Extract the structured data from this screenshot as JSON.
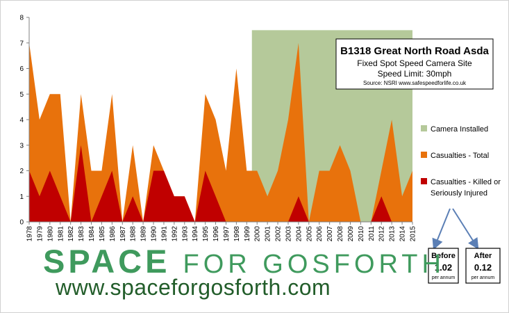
{
  "chart_data": {
    "type": "area",
    "title": "B1318 Great North Road Asda",
    "subtitle_lines": [
      "Fixed Spot Speed Camera Site",
      "Speed Limit: 30mph"
    ],
    "source": "Source: NSRI   www.safespeedforlife.co.uk",
    "x": [
      "1978",
      "1979",
      "1980",
      "1981",
      "1982",
      "1983",
      "1984",
      "1985",
      "1986",
      "1987",
      "1988",
      "1989",
      "1990",
      "1991",
      "1992",
      "1993",
      "1994",
      "1995",
      "1996",
      "1997",
      "1998",
      "1999",
      "2000",
      "2001",
      "2002",
      "2003",
      "2004",
      "2005",
      "2006",
      "2007",
      "2008",
      "2009",
      "2010",
      "2011",
      "2012",
      "2013",
      "2014",
      "2015"
    ],
    "ylim": [
      0,
      8
    ],
    "yticks": [
      0,
      1,
      2,
      3,
      4,
      5,
      6,
      7,
      8
    ],
    "grid": false,
    "legend_position": "right",
    "series": [
      {
        "name": "Camera Installed",
        "color": "#b5c99a",
        "start": "1999.5",
        "level": 7.5
      },
      {
        "name": "Casualties - Total",
        "color": "#e8720c",
        "values": [
          7,
          4,
          5,
          5,
          0,
          5,
          2,
          2,
          5,
          0,
          3,
          0,
          3,
          2,
          1,
          1,
          0,
          5,
          4,
          2,
          6,
          2,
          2,
          1,
          2,
          4,
          7,
          0,
          2,
          2,
          3,
          2,
          0,
          0,
          2,
          4,
          1,
          2
        ]
      },
      {
        "name": "Casualties - Killed or Seriously Injured",
        "color": "#c00000",
        "values": [
          2,
          1,
          2,
          1,
          0,
          3,
          0,
          1,
          2,
          0,
          1,
          0,
          2,
          2,
          1,
          1,
          0,
          2,
          1,
          0,
          0,
          0,
          0,
          0,
          0,
          0,
          1,
          0,
          0,
          0,
          0,
          0,
          0,
          0,
          1,
          0,
          0,
          0
        ]
      }
    ]
  },
  "legend": {
    "camera_label": "Camera Installed",
    "total_label": "Casualties - Total",
    "ksi_label_line1": "Casualties - Killed or",
    "ksi_label_line2": "Seriously Injured"
  },
  "stats": {
    "before": {
      "label": "Before",
      "value": "1.02",
      "unit": "per annum"
    },
    "after": {
      "label": "After",
      "value": "0.12",
      "unit": "per annum"
    }
  },
  "branding": {
    "title_bold": "SPACE",
    "title_light": "FOR GOSFORTH",
    "url": "www.spaceforgosforth.com"
  }
}
